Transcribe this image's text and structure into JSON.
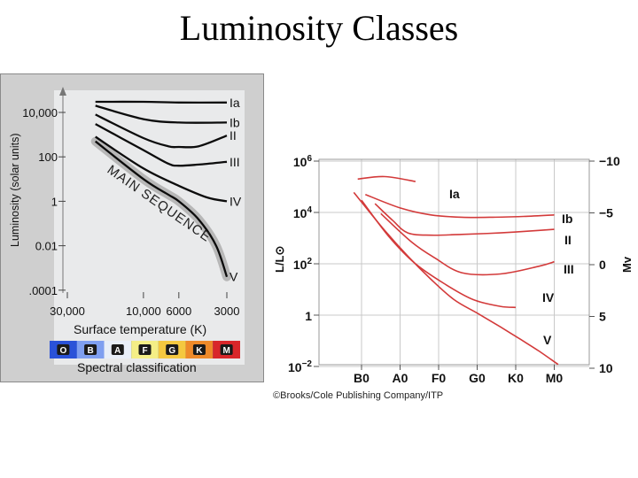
{
  "page": {
    "title": "Luminosity Classes"
  },
  "chart_data": [
    {
      "type": "line",
      "ylabel": "Luminosity (solar units)",
      "xlabel": "Surface temperature (K)",
      "x_ticks": [
        "30,000",
        "10,000",
        "6000",
        "3000"
      ],
      "y_ticks": [
        "10,000",
        "100",
        "1",
        "0.01",
        ".0001"
      ],
      "x_scale": "log-reversed",
      "xlim": [
        30000,
        3000
      ],
      "ylim": [
        0.0001,
        100000
      ],
      "y_scale": "log",
      "series": [
        {
          "name": "Ia",
          "x": [
            20000,
            10000,
            6000,
            3000
          ],
          "y": [
            30000,
            30000,
            28000,
            28000
          ]
        },
        {
          "name": "Ib",
          "x": [
            20000,
            10000,
            6000,
            3000
          ],
          "y": [
            20000,
            5000,
            3500,
            3500
          ]
        },
        {
          "name": "II",
          "x": [
            20000,
            10000,
            7000,
            6000,
            4500,
            3000
          ],
          "y": [
            8000,
            700,
            300,
            280,
            300,
            900
          ]
        },
        {
          "name": "III",
          "x": [
            20000,
            10000,
            7000,
            6000,
            4500,
            3000
          ],
          "y": [
            3000,
            200,
            50,
            40,
            45,
            60
          ]
        },
        {
          "name": "IV",
          "x": [
            20000,
            10000,
            6000,
            4000,
            3000
          ],
          "y": [
            800,
            30,
            5,
            1.5,
            1
          ]
        },
        {
          "name": "V",
          "x": [
            20000,
            10000,
            7000,
            6000,
            4500,
            3500,
            3000
          ],
          "y": [
            500,
            10,
            2,
            1,
            0.15,
            0.01,
            0.0004
          ]
        }
      ],
      "annotations": [
        "MAIN SEQUENCE"
      ],
      "spectral_label": "Spectral classification",
      "spectral_classes": [
        {
          "letter": "O",
          "color": "#2a52d8"
        },
        {
          "letter": "B",
          "color": "#7f9ff0"
        },
        {
          "letter": "A",
          "color": "#e8eef8"
        },
        {
          "letter": "F",
          "color": "#f4ee86"
        },
        {
          "letter": "G",
          "color": "#f4c840"
        },
        {
          "letter": "K",
          "color": "#ee8a2a"
        },
        {
          "letter": "M",
          "color": "#d8262a"
        }
      ]
    },
    {
      "type": "line",
      "ylabel": "L/L⊙",
      "y2label": "Mv",
      "categories": [
        "B0",
        "A0",
        "F0",
        "G0",
        "K0",
        "M0"
      ],
      "y_ticks": [
        "10^6",
        "10^4",
        "10^2",
        "1",
        "10^-2"
      ],
      "y2_ticks": [
        "−10",
        "−5",
        "0",
        "5",
        "10"
      ],
      "ylim": [
        0.01,
        1000000
      ],
      "y_scale": "log",
      "line_color": "#d33a3a",
      "series": [
        {
          "name": "Ia",
          "x": [
            -0.1,
            0.6,
            1.4
          ],
          "y": [
            200000,
            250000,
            160000
          ]
        },
        {
          "name": "Ib",
          "x": [
            0.1,
            1.0,
            1.8,
            2.6,
            3.4,
            4.2,
            5.0
          ],
          "y": [
            50000,
            15000,
            8000,
            6500,
            6500,
            7000,
            8000
          ]
        },
        {
          "name": "II",
          "x": [
            0.35,
            0.8,
            1.2,
            1.8,
            2.6,
            3.6,
            4.6,
            5.0
          ],
          "y": [
            22000,
            5000,
            1600,
            1300,
            1400,
            1600,
            2000,
            2200
          ]
        },
        {
          "name": "III",
          "x": [
            0.5,
            1.3,
            1.9,
            2.6,
            3.6,
            4.6,
            5.0
          ],
          "y": [
            9000,
            700,
            170,
            45,
            40,
            80,
            120
          ]
        },
        {
          "name": "IV",
          "x": [
            0.0,
            0.7,
            1.4,
            2.2,
            2.9,
            3.6,
            4.0
          ],
          "y": [
            30000,
            1200,
            100,
            15,
            4,
            2.2,
            2
          ]
        },
        {
          "name": "V",
          "x": [
            -0.2,
            0.6,
            1.2,
            1.8,
            2.4,
            3.0,
            3.6,
            4.1,
            4.6,
            5.1
          ],
          "y": [
            60000,
            2000,
            200,
            25,
            4,
            1.2,
            0.35,
            0.12,
            0.04,
            0.012
          ]
        }
      ]
    }
  ],
  "credit": "©Brooks/Cole Publishing Company/ITP"
}
